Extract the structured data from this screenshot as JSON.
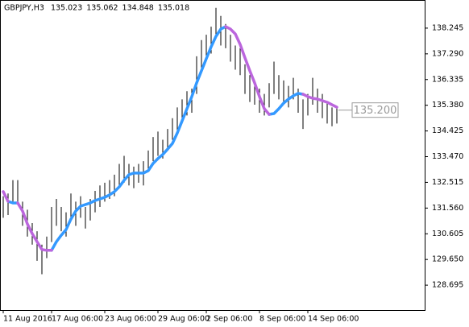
{
  "chart_data": {
    "type": "ohlc",
    "symbol": "GBPJPY,H3",
    "ohlc": [
      135.023,
      135.062,
      134.848,
      135.018
    ],
    "categories": [
      "11 Aug 2016",
      null,
      null,
      null,
      null,
      null,
      null,
      null,
      null,
      null,
      "17 Aug 06:00",
      null,
      null,
      null,
      null,
      null,
      null,
      null,
      null,
      null,
      null,
      "23 Aug 06:00",
      null,
      null,
      null,
      null,
      null,
      null,
      null,
      null,
      null,
      null,
      "29 Aug 06:00",
      null,
      null,
      null,
      null,
      null,
      null,
      null,
      null,
      null,
      "2 Sep 06:00",
      null,
      null,
      null,
      null,
      null,
      null,
      null,
      null,
      null,
      null,
      "8 Sep 06:00",
      null,
      null,
      null,
      null,
      null,
      null,
      null,
      null,
      null,
      "14 Sep 06:00",
      null,
      null,
      null,
      null,
      null,
      null
    ],
    "high": [
      132.0,
      132.1,
      132.6,
      132.6,
      131.8,
      131.5,
      131.0,
      130.7,
      130.2,
      130.5,
      131.6,
      131.9,
      131.6,
      131.4,
      132.1,
      131.8,
      132.0,
      131.6,
      131.9,
      132.2,
      132.4,
      132.5,
      132.6,
      132.8,
      133.2,
      133.5,
      133.2,
      133.1,
      133.2,
      133.3,
      133.7,
      134.2,
      134.4,
      134.1,
      134.5,
      134.9,
      135.3,
      135.6,
      135.9,
      136.0,
      137.2,
      137.8,
      138.0,
      138.3,
      139.0,
      138.7,
      138.4,
      138.0,
      137.6,
      137.5,
      136.9,
      136.5,
      136.3,
      136.0,
      135.8,
      136.2,
      137.0,
      136.5,
      136.3,
      136.1,
      136.4,
      136.0,
      135.6,
      135.8,
      136.4,
      136.0,
      135.8,
      135.5,
      135.3,
      135.3
    ],
    "low": [
      131.2,
      131.3,
      131.8,
      131.7,
      130.9,
      130.5,
      130.2,
      129.6,
      129.1,
      129.7,
      130.3,
      130.9,
      130.7,
      130.5,
      131.1,
      130.9,
      131.2,
      130.8,
      131.1,
      131.4,
      131.6,
      131.8,
      131.9,
      132.0,
      132.3,
      132.5,
      132.4,
      132.3,
      132.5,
      132.4,
      132.9,
      133.3,
      133.5,
      133.4,
      133.7,
      134.1,
      134.4,
      134.7,
      135.0,
      135.1,
      135.8,
      136.7,
      137.0,
      137.3,
      138.0,
      137.6,
      137.5,
      137.0,
      136.7,
      136.5,
      135.8,
      135.5,
      135.4,
      135.1,
      135.0,
      135.3,
      135.8,
      135.6,
      135.4,
      135.3,
      135.6,
      135.1,
      134.5,
      135.0,
      135.4,
      135.1,
      134.9,
      134.7,
      134.6,
      134.7
    ],
    "series": [
      {
        "color": "#3399ff",
        "values": [
          null,
          131.81,
          131.75,
          131.75,
          null,
          null,
          null,
          null,
          null,
          null,
          129.99,
          130.31,
          130.55,
          130.76,
          131.15,
          131.45,
          131.63,
          131.69,
          131.75,
          131.84,
          131.9,
          131.96,
          132.05,
          132.17,
          132.35,
          132.59,
          132.8,
          132.86,
          132.86,
          132.86,
          132.95,
          133.22,
          133.4,
          133.55,
          133.75,
          133.96,
          134.35,
          134.8,
          135.25,
          135.7,
          136.21,
          136.66,
          137.11,
          137.55,
          137.94,
          138.21,
          138.3,
          null,
          null,
          null,
          null,
          null,
          null,
          null,
          null,
          135.04,
          135.07,
          135.25,
          135.46,
          135.61,
          135.73,
          135.82,
          135.79,
          null,
          null,
          null,
          null,
          null,
          null,
          null
        ]
      },
      {
        "color": "#bb66dd",
        "values": [
          132.17,
          131.81,
          null,
          131.75,
          131.45,
          130.97,
          130.61,
          130.31,
          130.02,
          129.99,
          129.99,
          null,
          null,
          null,
          null,
          null,
          null,
          null,
          null,
          null,
          null,
          null,
          null,
          null,
          null,
          null,
          null,
          null,
          null,
          null,
          null,
          null,
          null,
          null,
          null,
          null,
          null,
          null,
          null,
          null,
          null,
          null,
          null,
          null,
          null,
          null,
          138.3,
          138.21,
          138.03,
          137.64,
          137.14,
          136.66,
          136.21,
          135.7,
          135.25,
          135.04,
          null,
          null,
          null,
          null,
          null,
          null,
          135.79,
          135.7,
          135.64,
          135.61,
          135.55,
          135.49,
          135.4,
          135.31
        ]
      }
    ],
    "price_label": {
      "value": 135.2,
      "label": "135.200"
    },
    "ylim": [
      127.77,
      139.29
    ],
    "yticks": [
      138.245,
      {
        "value": 137.29,
        "label": "137.290"
      },
      136.335,
      {
        "value": 135.38,
        "label": "135.380"
      },
      134.425,
      {
        "value": 133.47,
        "label": "133.470"
      },
      132.515,
      {
        "value": 131.56,
        "label": "131.560"
      },
      130.605,
      {
        "value": 129.65,
        "label": "129.650"
      },
      128.695
    ]
  }
}
